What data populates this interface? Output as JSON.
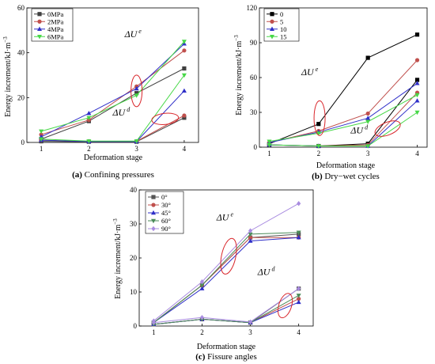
{
  "figure": {
    "ellipse_color": "#d9262b"
  },
  "chart_data": [
    {
      "id": "a",
      "type": "line",
      "caption_letter": "(a)",
      "caption_text": " Confining pressures",
      "xlabel": "Deformation stage",
      "ylabel": "Energy increment/kJ·m",
      "ylabel_exp": "−3",
      "x": [
        1,
        2,
        3,
        4
      ],
      "xlim": [
        0.7,
        4.3
      ],
      "ylim": [
        0,
        60
      ],
      "yticks": [
        0,
        20,
        40,
        60
      ],
      "legend": "top-left",
      "series": [
        {
          "name": "0MPa",
          "color": "#404040",
          "marker": "square",
          "values_e": [
            1.5,
            9.5,
            22,
            33
          ],
          "values_d": [
            0.5,
            0.3,
            0.3,
            11
          ]
        },
        {
          "name": "2MPa",
          "color": "#c0504d",
          "marker": "circle",
          "values_e": [
            3.5,
            10,
            25,
            41
          ],
          "values_d": [
            1,
            0.5,
            0.5,
            12
          ]
        },
        {
          "name": "4MPa",
          "color": "#2f2fc8",
          "marker": "triangle-up",
          "values_e": [
            2.5,
            13,
            24,
            44
          ],
          "values_d": [
            1,
            0.4,
            0.4,
            23
          ]
        },
        {
          "name": "6MPa",
          "color": "#47d847",
          "marker": "triangle-down",
          "values_e": [
            5,
            11,
            21,
            45
          ],
          "values_d": [
            1.5,
            0.6,
            0.6,
            30
          ]
        }
      ],
      "annotations": [
        {
          "label": "ΔU",
          "sup": "e",
          "x": 2.75,
          "y": 47
        },
        {
          "label": "ΔU",
          "sup": "d",
          "x": 2.5,
          "y": 12
        }
      ]
    },
    {
      "id": "b",
      "type": "line",
      "caption_letter": "(b)",
      "caption_text": " Dry−wet cycles",
      "xlabel": "Deformation stage",
      "ylabel": "Energy increment/kJ·m",
      "ylabel_exp": "−3",
      "x": [
        1,
        2,
        3,
        4
      ],
      "xlim": [
        0.8,
        4.2
      ],
      "ylim": [
        0,
        120
      ],
      "yticks": [
        0,
        30,
        60,
        90,
        120
      ],
      "legend": "top-left",
      "series": [
        {
          "name": "0",
          "color": "#000000",
          "marker": "square",
          "values_e": [
            3,
            20,
            77,
            97
          ],
          "values_d": [
            2,
            1,
            3,
            58
          ]
        },
        {
          "name": "5",
          "color": "#c0504d",
          "marker": "circle",
          "values_e": [
            4,
            14,
            29,
            75
          ],
          "values_d": [
            2,
            1,
            2,
            47
          ]
        },
        {
          "name": "10",
          "color": "#2f2fc8",
          "marker": "triangle-up",
          "values_e": [
            4,
            13,
            25,
            55
          ],
          "values_d": [
            2,
            1,
            1,
            40
          ]
        },
        {
          "name": "15",
          "color": "#47d847",
          "marker": "triangle-down",
          "values_e": [
            5,
            12,
            22,
            45
          ],
          "values_d": [
            2,
            1,
            1,
            30
          ]
        }
      ],
      "annotations": [
        {
          "label": "ΔU",
          "sup": "e",
          "x": 1.65,
          "y": 62
        },
        {
          "label": "ΔU",
          "sup": "d",
          "x": 2.65,
          "y": 12
        }
      ]
    },
    {
      "id": "c",
      "type": "line",
      "caption_letter": "(c)",
      "caption_text": " Fissure angles",
      "xlabel": "Deformation stage",
      "ylabel": "Energy increment/kJ·m",
      "ylabel_exp": "−3",
      "x": [
        1,
        2,
        3,
        4
      ],
      "xlim": [
        0.7,
        4.3
      ],
      "ylim": [
        0,
        40
      ],
      "yticks": [
        0,
        10,
        20,
        30,
        40
      ],
      "legend": "top-left",
      "series": [
        {
          "name": "0°",
          "color": "#555555",
          "marker": "square",
          "values_e": [
            1,
            12,
            26,
            27
          ],
          "values_d": [
            0.5,
            2,
            1,
            11
          ]
        },
        {
          "name": "30°",
          "color": "#c0504d",
          "marker": "circle",
          "values_e": [
            1,
            12,
            26,
            26
          ],
          "values_d": [
            0.5,
            2,
            1,
            8
          ]
        },
        {
          "name": "45°",
          "color": "#2f2fc8",
          "marker": "triangle-up",
          "values_e": [
            1,
            11,
            25,
            26
          ],
          "values_d": [
            0.5,
            2,
            1,
            7
          ]
        },
        {
          "name": "60°",
          "color": "#4b8b5a",
          "marker": "triangle-down",
          "values_e": [
            1,
            12,
            27,
            27.5
          ],
          "values_d": [
            0.5,
            2,
            1,
            9
          ]
        },
        {
          "name": "90°",
          "color": "#a98ce0",
          "marker": "diamond",
          "values_e": [
            1.5,
            13,
            28,
            36
          ],
          "values_d": [
            1,
            2.5,
            1.2,
            11
          ]
        }
      ],
      "annotations": [
        {
          "label": "ΔU",
          "sup": "e",
          "x": 2.3,
          "y": 31
        },
        {
          "label": "ΔU",
          "sup": "d",
          "x": 3.15,
          "y": 15
        }
      ]
    }
  ]
}
